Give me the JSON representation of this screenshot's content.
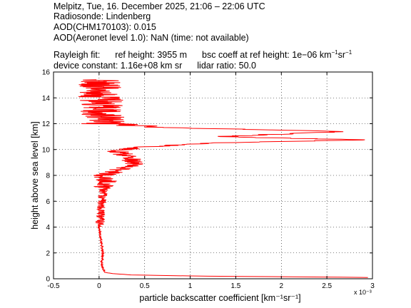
{
  "header": {
    "line1": "Melpitz, Tue, 16. December 2025, 21:06 – 22:06 UTC",
    "line2": "Radiosonde: Lindenberg",
    "line3": "AOD(CHM170103): 0.015",
    "line4": "AOD(Aeronet level 1.0): NaN   (time: not available)",
    "rayleigh_label": "Rayleigh fit:",
    "ref_height": "ref height: 3955 m",
    "bsc_coeff_prefix": "bsc coeff at ref height: 1e−06 km",
    "device_constant": "device constant: 1.16e+08 km sr",
    "lidar_ratio": "lidar ratio: 50.0"
  },
  "colors": {
    "series": "#ff0000",
    "axes": "#000000",
    "grid": "#000000"
  },
  "chart_data": {
    "type": "line",
    "xlabel": "particle backscatter coefficient [km⁻¹sr⁻¹]",
    "ylabel": "height above sea level [km]",
    "x_multiplier_label": "x 10⁻³",
    "xlim": [
      -0.5,
      3
    ],
    "ylim": [
      0,
      16
    ],
    "x_ticks": [
      -0.5,
      0,
      0.5,
      1,
      1.5,
      2,
      2.5,
      3
    ],
    "x_tick_labels": [
      "-0.5",
      "0",
      "0.5",
      "1",
      "1.5",
      "2",
      "2.5",
      "3"
    ],
    "y_ticks": [
      0,
      2,
      4,
      6,
      8,
      10,
      12,
      14,
      16
    ],
    "y_tick_labels": [
      "0",
      "2",
      "4",
      "6",
      "8",
      "10",
      "12",
      "14",
      "16"
    ],
    "grid": true,
    "series": [
      {
        "color": "#ff0000",
        "profile": [
          {
            "h": 0.1,
            "x": 2.95
          },
          {
            "h": 0.15,
            "x": 2.2
          },
          {
            "h": 0.2,
            "x": 1.2
          },
          {
            "h": 0.25,
            "x": 0.7
          },
          {
            "h": 0.3,
            "x": 0.35
          },
          {
            "h": 0.4,
            "x": 0.15
          },
          {
            "h": 0.5,
            "x": 0.06
          },
          {
            "h": 1.0,
            "x": 0.03
          },
          {
            "h": 2.0,
            "x": 0.04
          },
          {
            "h": 3.0,
            "x": 0.02
          },
          {
            "h": 4.0,
            "x": 0.0
          },
          {
            "h": 5.0,
            "x": 0.02
          },
          {
            "h": 6.0,
            "x": 0.03
          },
          {
            "h": 7.0,
            "x": 0.05
          },
          {
            "h": 7.5,
            "x": 0.1
          },
          {
            "h": 8.0,
            "x": 0.05
          },
          {
            "h": 8.5,
            "x": 0.25
          },
          {
            "h": 9.0,
            "x": 0.4
          },
          {
            "h": 9.5,
            "x": 0.3
          },
          {
            "h": 9.9,
            "x": 0.2
          },
          {
            "h": 10.2,
            "x": 0.5
          },
          {
            "h": 10.5,
            "x": 1.2
          },
          {
            "h": 10.75,
            "x": 2.9
          },
          {
            "h": 11.0,
            "x": 1.3
          },
          {
            "h": 11.4,
            "x": 2.7
          },
          {
            "h": 11.7,
            "x": 0.7
          },
          {
            "h": 12.0,
            "x": 0.05
          },
          {
            "h": 13.0,
            "x": 0.02
          },
          {
            "h": 14.0,
            "x": 0.03
          },
          {
            "h": 15.0,
            "x": 0.02
          },
          {
            "h": 15.4,
            "x": 0.05
          }
        ]
      }
    ]
  }
}
